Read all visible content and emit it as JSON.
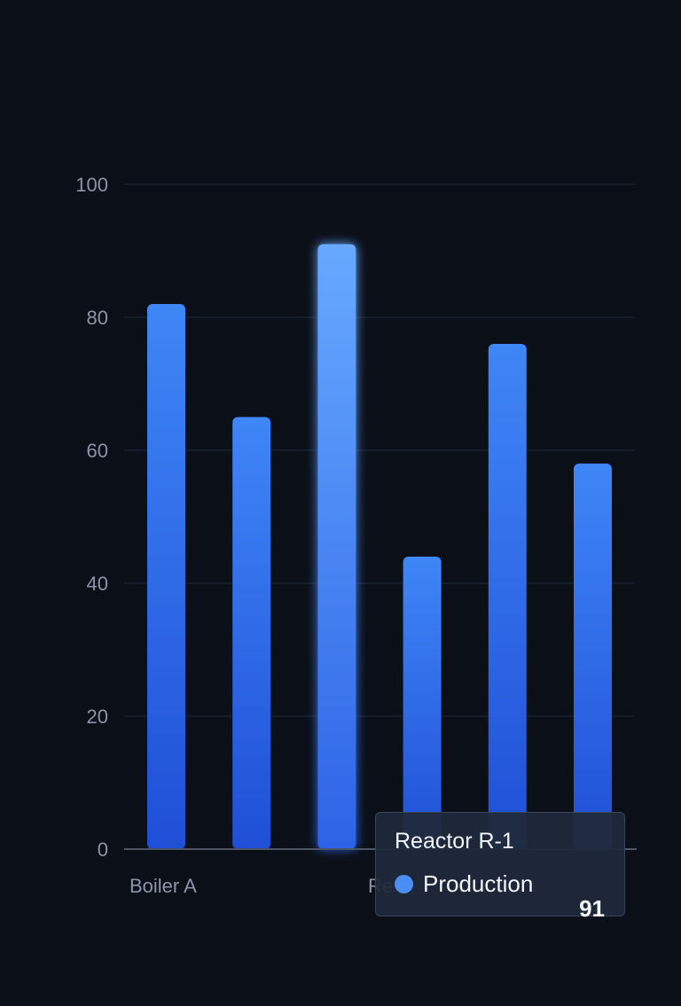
{
  "chart_data": {
    "type": "bar",
    "categories": [
      "Boiler A",
      "",
      "Reactor R-1",
      "",
      "",
      ""
    ],
    "visible_category_labels": [
      "Boiler A",
      "Re"
    ],
    "series": [
      {
        "name": "Production",
        "values": [
          82,
          65,
          91,
          44,
          76,
          58
        ]
      }
    ],
    "ylim": [
      0,
      100
    ],
    "y_ticks": [
      "0",
      "20",
      "40",
      "60",
      "80",
      "100"
    ],
    "grid": true,
    "highlighted_index": 2
  },
  "tooltip": {
    "title": "Reactor R-1",
    "series_label": "Production",
    "value": "91"
  },
  "colors": {
    "background": "#0b0f17",
    "grid": "#1b2230",
    "axis": "#4b5566",
    "tick_text": "#8b95a7",
    "bar_top": "#3f86f7",
    "bar_bottom": "#1f4fd6",
    "bar_highlight_top": "#67a9ff",
    "bar_highlight_bottom": "#2c63e6",
    "legend_dot": "#4a8ef5"
  }
}
